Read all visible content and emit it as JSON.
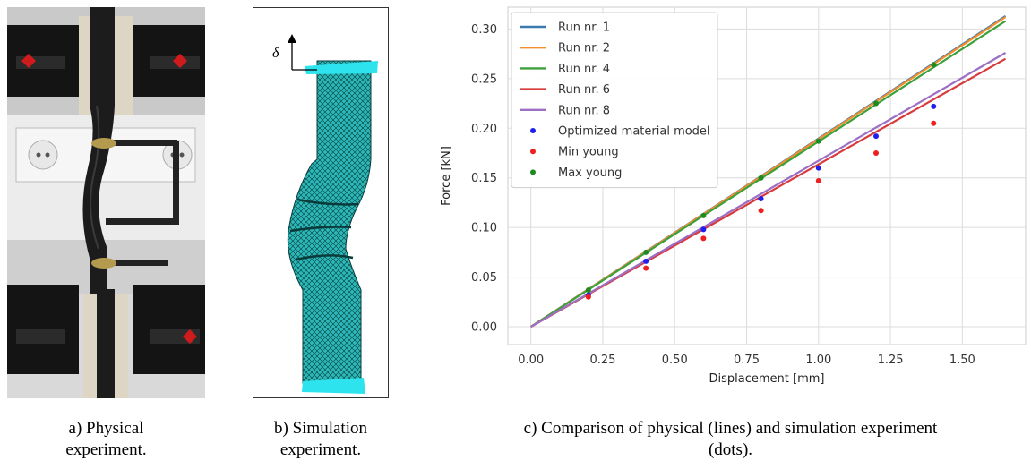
{
  "figures": {
    "a": {
      "caption_line1": "a) Physical",
      "caption_line2": "experiment."
    },
    "b": {
      "caption_line1": "b) Simulation",
      "caption_line2": "experiment.",
      "delta_label": "δ"
    },
    "c": {
      "caption_line1": "c) Comparison of physical (lines) and simulation experiment",
      "caption_line2": "(dots)."
    }
  },
  "colors": {
    "run1": "#3b7ab0",
    "run2": "#f28e2b",
    "run4": "#3ca03c",
    "run6": "#d83a3c",
    "run8": "#9b6fc4",
    "opt": "#1f1ff0",
    "min": "#f01f1f",
    "max": "#1f8a1f",
    "mesh": "#2bb8b8",
    "clamp": "#2de3ee"
  },
  "chart_data": {
    "type": "line",
    "xlabel": "Displacement [mm]",
    "ylabel": "Force [kN]",
    "xlim": [
      -0.08,
      1.72
    ],
    "ylim": [
      -0.018,
      0.322
    ],
    "xticks": [
      "0.00",
      "0.25",
      "0.50",
      "0.75",
      "1.00",
      "1.25",
      "1.50"
    ],
    "xtick_values": [
      0,
      0.25,
      0.5,
      0.75,
      1.0,
      1.25,
      1.5
    ],
    "yticks": [
      "0.00",
      "0.05",
      "0.10",
      "0.15",
      "0.20",
      "0.25",
      "0.30"
    ],
    "ytick_values": [
      0,
      0.05,
      0.1,
      0.15,
      0.2,
      0.25,
      0.3
    ],
    "grid": true,
    "legend_position": "top-left",
    "series": [
      {
        "name": "Run nr. 1",
        "kind": "line",
        "color": "#3b7ab0",
        "x": [
          0.0,
          1.65
        ],
        "y": [
          0.0,
          0.313
        ]
      },
      {
        "name": "Run nr. 2",
        "kind": "line",
        "color": "#f28e2b",
        "x": [
          0.0,
          1.65
        ],
        "y": [
          0.0,
          0.312
        ]
      },
      {
        "name": "Run nr. 4",
        "kind": "line",
        "color": "#3ca03c",
        "x": [
          0.0,
          1.65
        ],
        "y": [
          0.0,
          0.308
        ]
      },
      {
        "name": "Run nr. 6",
        "kind": "line",
        "color": "#d83a3c",
        "x": [
          0.0,
          1.65
        ],
        "y": [
          0.0,
          0.27
        ]
      },
      {
        "name": "Run nr. 8",
        "kind": "line",
        "color": "#9b6fc4",
        "x": [
          0.0,
          1.65
        ],
        "y": [
          0.0,
          0.276
        ]
      },
      {
        "name": "Optimized material model",
        "kind": "scatter",
        "color": "#1f1ff0",
        "x": [
          0.2,
          0.4,
          0.6,
          0.8,
          1.0,
          1.2,
          1.4
        ],
        "y": [
          0.032,
          0.066,
          0.098,
          0.129,
          0.16,
          0.192,
          0.222
        ]
      },
      {
        "name": "Min young",
        "kind": "scatter",
        "color": "#f01f1f",
        "x": [
          0.2,
          0.4,
          0.6,
          0.8,
          1.0,
          1.2,
          1.4
        ],
        "y": [
          0.03,
          0.059,
          0.089,
          0.117,
          0.147,
          0.175,
          0.205
        ]
      },
      {
        "name": "Max young",
        "kind": "scatter",
        "color": "#1f8a1f",
        "x": [
          0.2,
          0.4,
          0.6,
          0.8,
          1.0,
          1.2,
          1.4
        ],
        "y": [
          0.037,
          0.075,
          0.112,
          0.15,
          0.187,
          0.225,
          0.264
        ]
      }
    ]
  }
}
